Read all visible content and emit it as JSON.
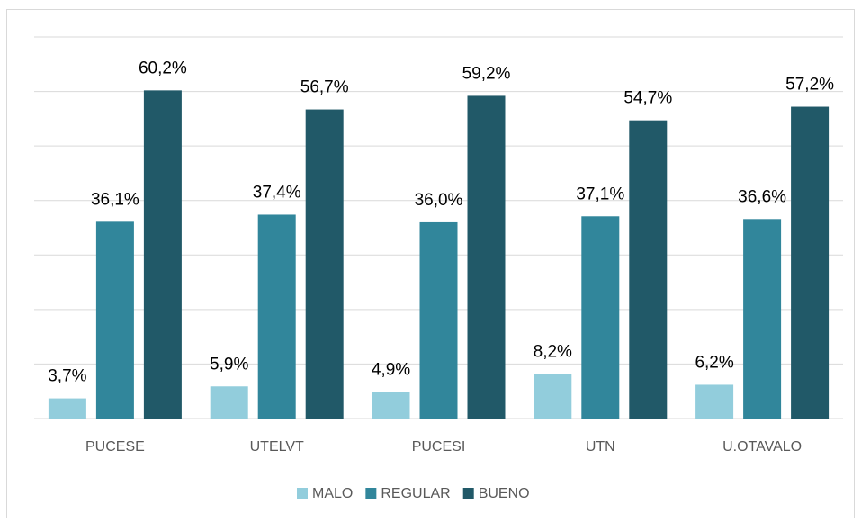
{
  "chart_data": {
    "type": "bar",
    "categories": [
      "PUCESE",
      "UTELVT",
      "PUCESI",
      "UTN",
      "U.OTAVALO"
    ],
    "series": [
      {
        "name": "MALO",
        "color": "#92cddc",
        "values": [
          3.7,
          5.9,
          4.9,
          8.2,
          6.2
        ],
        "value_labels": [
          "3,7%",
          "5,9%",
          "4,9%",
          "8,2%",
          "6,2%"
        ]
      },
      {
        "name": "REGULAR",
        "color": "#31869b",
        "values": [
          36.1,
          37.4,
          36.0,
          37.1,
          36.6
        ],
        "value_labels": [
          "36,1%",
          "37,4%",
          "36,0%",
          "37,1%",
          "36,6%"
        ]
      },
      {
        "name": "BUENO",
        "color": "#215968",
        "values": [
          60.2,
          56.7,
          59.2,
          54.7,
          57.2
        ],
        "value_labels": [
          "60,2%",
          "56,7%",
          "59,2%",
          "54,7%",
          "57,2%"
        ]
      }
    ],
    "ylim": [
      0,
      70
    ],
    "yticks": [
      0,
      10,
      20,
      30,
      40,
      50,
      60,
      70
    ],
    "grid": true,
    "legend": "bottom"
  }
}
